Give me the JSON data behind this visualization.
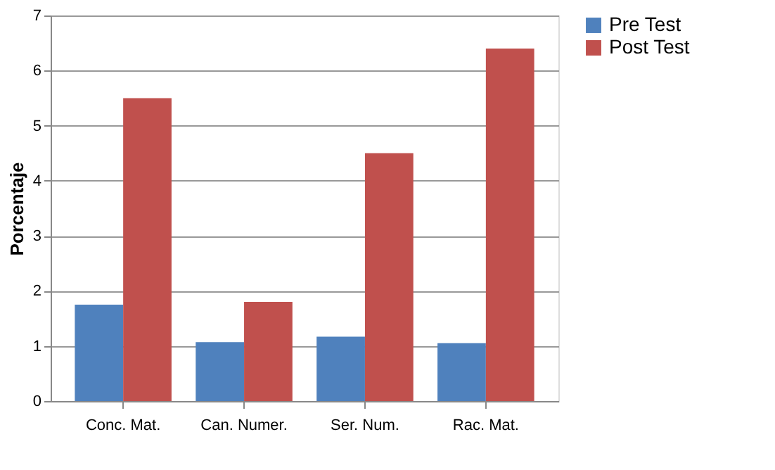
{
  "chart_data": {
    "type": "bar",
    "ylabel": "Porcentaje",
    "categories": [
      "Conc. Mat.",
      "Can. Numer.",
      "Ser. Num.",
      "Rac. Mat."
    ],
    "series": [
      {
        "name": "Pre Test",
        "color": "#4f81bd",
        "values": [
          1.75,
          1.07,
          1.17,
          1.05
        ]
      },
      {
        "name": "Post Test",
        "color": "#c0504d",
        "values": [
          5.5,
          1.8,
          4.5,
          6.4
        ]
      }
    ],
    "ylim": [
      0,
      7
    ],
    "yticks": [
      0,
      1,
      2,
      3,
      4,
      5,
      6,
      7
    ],
    "grid": "y",
    "legend": "right"
  }
}
